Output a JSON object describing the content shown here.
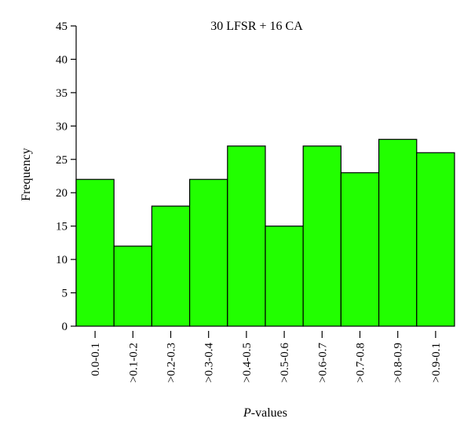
{
  "chart_data": {
    "type": "bar",
    "title": "30 LFSR + 16 CA",
    "xlabel_italic": "P",
    "xlabel_rest": "-values",
    "ylabel": "Frequency",
    "ylim": [
      0,
      45
    ],
    "yticks": [
      "0",
      "5",
      "10",
      "15",
      "20",
      "25",
      "30",
      "35",
      "40",
      "45"
    ],
    "categories": [
      "0.0-0.1",
      ">0.1-0.2",
      ">0.2-0.3",
      ">0.3-0.4",
      ">0.4-0.5",
      ">0.5-0.6",
      ">0.6-0.7",
      ">0.7-0.8",
      ">0.8-0.9",
      ">0.9-0.1"
    ],
    "values": [
      22,
      12,
      18,
      22,
      27,
      15,
      27,
      23,
      28,
      26
    ],
    "bar_color": "#22ff00",
    "bar_edge_color": "#000000",
    "grid": false,
    "legend": "none"
  }
}
